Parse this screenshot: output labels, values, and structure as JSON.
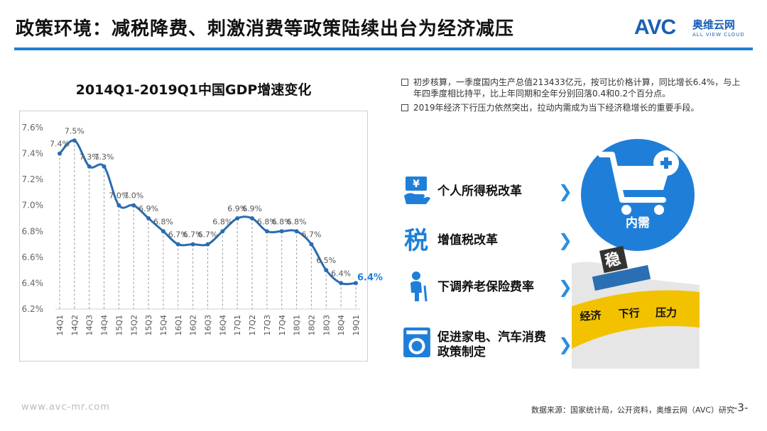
{
  "header": {
    "title": "政策环境：减税降费、刺激消费等政策陆续出台为经济减压",
    "logo_text": "AVC",
    "logo_cn": "奥维云网",
    "logo_en": "ALL VIEW CLOUD"
  },
  "chart_data": {
    "type": "line",
    "title": "2014Q1-2019Q1中国GDP增速变化",
    "categories": [
      "14Q1",
      "14Q2",
      "14Q3",
      "14Q4",
      "15Q1",
      "15Q2",
      "15Q3",
      "15Q4",
      "16Q1",
      "16Q2",
      "16Q3",
      "16Q4",
      "17Q1",
      "17Q2",
      "17Q3",
      "17Q4",
      "18Q1",
      "18Q2",
      "18Q3",
      "18Q4",
      "19Q1"
    ],
    "values": [
      7.4,
      7.5,
      7.3,
      7.3,
      7.0,
      7.0,
      6.9,
      6.8,
      6.7,
      6.7,
      6.7,
      6.8,
      6.9,
      6.9,
      6.8,
      6.8,
      6.8,
      6.7,
      6.5,
      6.4,
      6.4
    ],
    "data_labels": [
      "7.4%",
      "7.5%",
      "7.3%",
      "7.3%",
      "7.0%",
      "7.0%",
      "6.9%",
      "6.8%",
      "6.7%",
      "6.7%",
      "6.7%",
      "6.8%",
      "6.9%",
      "6.9%",
      "6.8%",
      "6.8%",
      "6.8%",
      "6.7%",
      "6.5%",
      "6.4%",
      "6.4%"
    ],
    "y_ticks": [
      "6.2%",
      "6.4%",
      "6.6%",
      "6.8%",
      "7.0%",
      "7.2%",
      "7.4%",
      "7.6%"
    ],
    "ylim": [
      6.2,
      7.6
    ],
    "line_color": "#2b6cb0",
    "highlight_color": "#1f7fd8"
  },
  "bullets": [
    "初步核算，一季度国内生产总值213433亿元，按可比价格计算，同比增长6.4%，与上年四季度相比持平，比上年同期和全年分别回落0.4和0.2个百分点。",
    "2019年经济下行压力依然突出，拉动内需成为当下经济稳增长的重要手段。"
  ],
  "policies": [
    {
      "label": "个人所得税改革",
      "icon": "money-hand-icon"
    },
    {
      "label": "增值税改革",
      "icon": "tax-character-icon"
    },
    {
      "label": "下调养老保险费率",
      "icon": "elderly-person-icon"
    },
    {
      "label": "促进家电、汽车消费政策制定",
      "icon": "washing-machine-icon"
    }
  ],
  "illustration": {
    "circle_label": "内需",
    "stable_char": "稳",
    "pressure_words": [
      "经济",
      "下行",
      "压力"
    ],
    "accent": "#1f7fd8",
    "arrow_color": "#f2c200"
  },
  "footer": {
    "website": "www.avc-mr.com",
    "source": "数据来源：国家统计局，公开资料，奥维云网（AVC）研究",
    "page": "-3-"
  }
}
